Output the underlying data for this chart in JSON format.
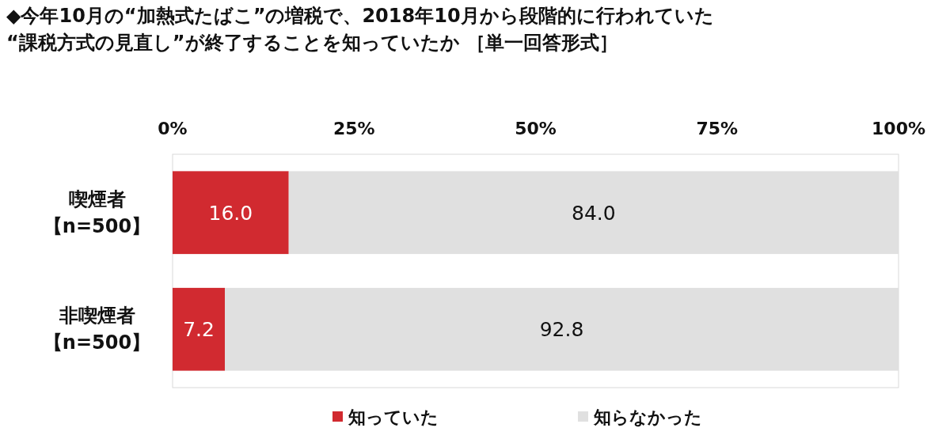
{
  "chart_data": {
    "type": "bar",
    "orientation": "horizontal",
    "stacked": true,
    "title": "◆今年10月の“加熱式たばこ”の増税で、2018年10月から段階的に行われていた\n“課税方式の見直し”が終了することを知っていたか ［単一回答形式］",
    "categories": [
      "喫煙者【n=500】",
      "非喫煙者【n=500】"
    ],
    "series": [
      {
        "name": "知っていた",
        "color": "#d12a30",
        "values": [
          16.0,
          7.2
        ],
        "value_labels": [
          "16.0",
          "7.2"
        ]
      },
      {
        "name": "知らなかった",
        "color": "#e0e0e0",
        "values": [
          84.0,
          92.8
        ],
        "value_labels": [
          "84.0",
          "92.8"
        ]
      }
    ],
    "xlim": [
      0,
      100
    ],
    "xticks": [
      {
        "value": 0,
        "label": "0%"
      },
      {
        "value": 25,
        "label": "25%"
      },
      {
        "value": 50,
        "label": "50%"
      },
      {
        "value": 75,
        "label": "75%"
      },
      {
        "value": 100,
        "label": "100%"
      }
    ],
    "legend": "bottom",
    "grid": false
  }
}
